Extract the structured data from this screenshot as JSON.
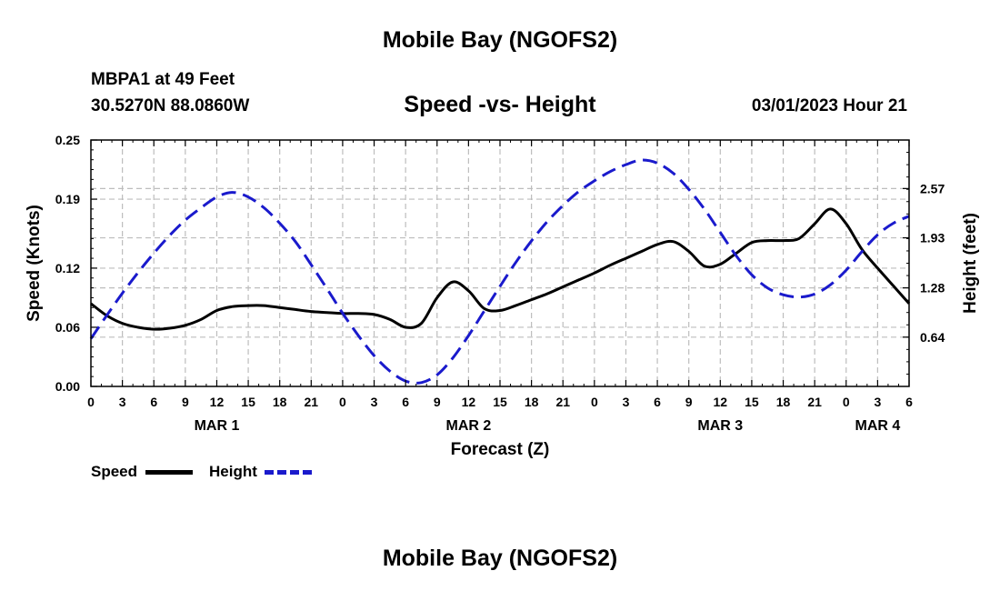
{
  "header": {
    "title": "Mobile Bay (NGOFS2)",
    "station": "MBPA1 at 49 Feet",
    "coords": "30.5270N  88.0860W",
    "datetime": "03/01/2023 Hour 21"
  },
  "footer": {
    "title": "Mobile Bay (NGOFS2)"
  },
  "colors": {
    "speed": "#000000",
    "height": "#1a1acc",
    "grid": "#bdbdbd"
  },
  "chart_data": {
    "type": "line",
    "title": "Speed -vs- Height",
    "xlabel": "Forecast (Z)",
    "ylabel_left": "Speed (Knots)",
    "ylabel_right": "Height (feet)",
    "x_range_hours": [
      0,
      78
    ],
    "x_tick_labels": [
      "0",
      "3",
      "6",
      "9",
      "12",
      "15",
      "18",
      "21",
      "0",
      "3",
      "6",
      "9",
      "12",
      "15",
      "18",
      "21",
      "0",
      "3",
      "6",
      "9",
      "12",
      "15",
      "18",
      "21",
      "0",
      "3",
      "6"
    ],
    "day_labels": [
      {
        "label": "MAR 1",
        "hour": 12
      },
      {
        "label": "MAR 2",
        "hour": 36
      },
      {
        "label": "MAR 3",
        "hour": 60
      },
      {
        "label": "MAR 4",
        "hour": 75
      }
    ],
    "y_left": {
      "range": [
        0,
        0.25
      ],
      "ticks": [
        0.0,
        0.06,
        0.12,
        0.19,
        0.25
      ],
      "tick_labels": [
        "0.00",
        "0.06",
        "0.12",
        "0.19",
        "0.25"
      ]
    },
    "y_right": {
      "range": [
        0.0,
        3.2
      ],
      "ticks": [
        0.64,
        1.28,
        1.93,
        2.57
      ],
      "tick_labels": [
        "0.64",
        "1.28",
        "1.93",
        "2.57"
      ]
    },
    "grid": true,
    "legend": {
      "position": "bottom-left",
      "entries": [
        "Speed",
        "Height"
      ]
    },
    "series": [
      {
        "name": "Speed",
        "axis": "left",
        "x": [
          0,
          1.5,
          3,
          4.5,
          6,
          7.5,
          9,
          10.5,
          12,
          13.5,
          15,
          16.5,
          18,
          19.5,
          21,
          22.5,
          24,
          25.5,
          27,
          28.5,
          30,
          31.5,
          33,
          34.5,
          36,
          37.5,
          39,
          40.5,
          42,
          43.5,
          45,
          46.5,
          48,
          49.5,
          51,
          52.5,
          54,
          55.5,
          57,
          58.5,
          60,
          61.5,
          63,
          64.5,
          66,
          67.5,
          69,
          70.5,
          72,
          73.5,
          75,
          76.5,
          78
        ],
        "values": [
          0.084,
          0.072,
          0.064,
          0.06,
          0.058,
          0.059,
          0.062,
          0.068,
          0.077,
          0.081,
          0.082,
          0.082,
          0.08,
          0.078,
          0.076,
          0.075,
          0.074,
          0.074,
          0.073,
          0.068,
          0.06,
          0.064,
          0.09,
          0.106,
          0.097,
          0.079,
          0.077,
          0.082,
          0.088,
          0.094,
          0.101,
          0.108,
          0.115,
          0.123,
          0.13,
          0.137,
          0.144,
          0.147,
          0.137,
          0.122,
          0.124,
          0.135,
          0.146,
          0.148,
          0.148,
          0.15,
          0.165,
          0.18,
          0.165,
          0.139,
          0.12,
          0.102,
          0.084
        ]
      },
      {
        "name": "Height",
        "axis": "right",
        "x": [
          0,
          1.5,
          3,
          4.5,
          6,
          7.5,
          9,
          10.5,
          12,
          13.5,
          15,
          16.5,
          18,
          19.5,
          21,
          22.5,
          24,
          25.5,
          27,
          28.5,
          30,
          31.5,
          33,
          34.5,
          36,
          37.5,
          39,
          40.5,
          42,
          43.5,
          45,
          46.5,
          48,
          49.5,
          51,
          52.5,
          54,
          55.5,
          57,
          58.5,
          60,
          61.5,
          63,
          64.5,
          66,
          67.5,
          69,
          70.5,
          72,
          73.5,
          75,
          76.5,
          78
        ],
        "values": [
          0.62,
          0.92,
          1.21,
          1.48,
          1.73,
          1.96,
          2.16,
          2.32,
          2.46,
          2.52,
          2.46,
          2.32,
          2.12,
          1.88,
          1.58,
          1.27,
          0.95,
          0.66,
          0.4,
          0.2,
          0.07,
          0.05,
          0.15,
          0.37,
          0.66,
          0.98,
          1.3,
          1.61,
          1.89,
          2.14,
          2.35,
          2.53,
          2.67,
          2.79,
          2.88,
          2.94,
          2.9,
          2.77,
          2.56,
          2.3,
          2.0,
          1.7,
          1.45,
          1.28,
          1.19,
          1.16,
          1.2,
          1.32,
          1.51,
          1.75,
          1.97,
          2.12,
          2.21
        ]
      }
    ]
  }
}
